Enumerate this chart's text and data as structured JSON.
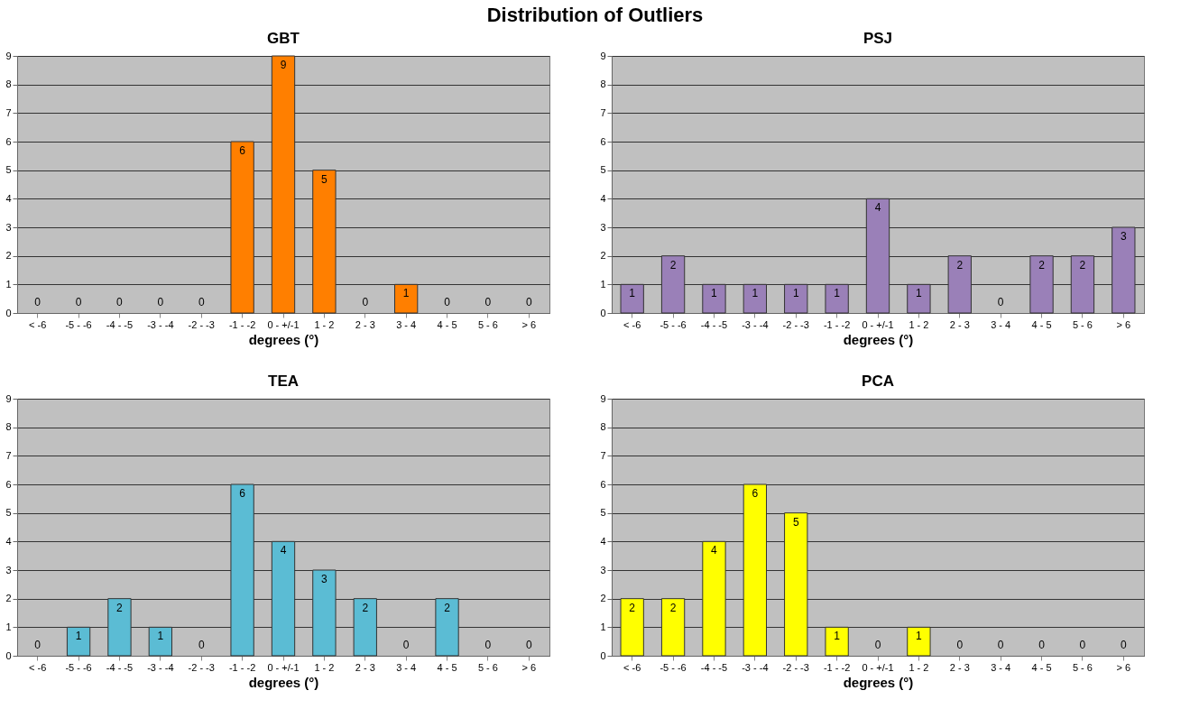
{
  "chart_data": [
    {
      "type": "bar",
      "title": "GBT",
      "annotations": [
        "Distribution of Outliers"
      ],
      "xlabel": "degrees (°)",
      "categories": [
        "< -6",
        "-5 - -6",
        "-4 - -5",
        "-3 - -4",
        "-2 - -3",
        "-1 - -2",
        "0 - +/-1",
        "1 - 2",
        "2 - 3",
        "3 - 4",
        "4 - 5",
        "5 - 6",
        "> 6"
      ],
      "values": [
        0,
        0,
        0,
        0,
        0,
        6,
        9,
        5,
        0,
        1,
        0,
        0,
        0
      ],
      "color": "#ff7f00",
      "ylim": [
        0,
        9
      ],
      "yticks": [
        0,
        1,
        2,
        3,
        4,
        5,
        6,
        7,
        8,
        9
      ],
      "grid": "y",
      "data_labels": true
    },
    {
      "type": "bar",
      "title": "PSJ",
      "xlabel": "degrees (°)",
      "categories": [
        "< -6",
        "-5 - -6",
        "-4 - -5",
        "-3 - -4",
        "-2 - -3",
        "-1 - -2",
        "0 - +/-1",
        "1 - 2",
        "2 - 3",
        "3 - 4",
        "4 - 5",
        "5 - 6",
        "> 6"
      ],
      "values": [
        1,
        2,
        1,
        1,
        1,
        1,
        4,
        1,
        2,
        0,
        2,
        2,
        3
      ],
      "color": "#9a80b8",
      "ylim": [
        0,
        9
      ],
      "yticks": [
        0,
        1,
        2,
        3,
        4,
        5,
        6,
        7,
        8,
        9
      ],
      "grid": "y",
      "data_labels": true
    },
    {
      "type": "bar",
      "title": "TEA",
      "xlabel": "degrees (°)",
      "categories": [
        "< -6",
        "-5 - -6",
        "-4 - -5",
        "-3 - -4",
        "-2 - -3",
        "-1 - -2",
        "0 - +/-1",
        "1 - 2",
        "2 - 3",
        "3 - 4",
        "4 - 5",
        "5 - 6",
        "> 6"
      ],
      "values": [
        0,
        1,
        2,
        1,
        0,
        6,
        4,
        3,
        2,
        0,
        2,
        0,
        0
      ],
      "color": "#5bbcd4",
      "ylim": [
        0,
        9
      ],
      "yticks": [
        0,
        1,
        2,
        3,
        4,
        5,
        6,
        7,
        8,
        9
      ],
      "grid": "y",
      "data_labels": true
    },
    {
      "type": "bar",
      "title": "PCA",
      "xlabel": "degrees (°)",
      "categories": [
        "< -6",
        "-5 - -6",
        "-4 - -5",
        "-3 - -4",
        "-2 - -3",
        "-1 - -2",
        "0 - +/-1",
        "1 - 2",
        "2 - 3",
        "3 - 4",
        "4 - 5",
        "5 - 6",
        "> 6"
      ],
      "values": [
        2,
        2,
        4,
        6,
        5,
        1,
        0,
        1,
        0,
        0,
        0,
        0,
        0
      ],
      "color": "#ffff00",
      "ylim": [
        0,
        9
      ],
      "yticks": [
        0,
        1,
        2,
        3,
        4,
        5,
        6,
        7,
        8,
        9
      ],
      "grid": "y",
      "data_labels": true
    }
  ]
}
